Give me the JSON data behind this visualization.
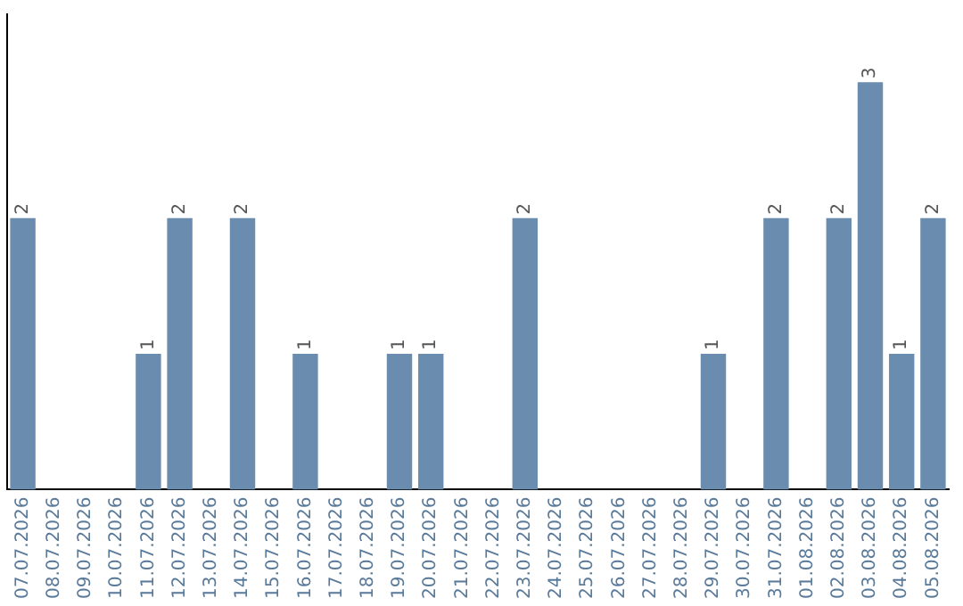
{
  "chart_data": {
    "type": "bar",
    "categories": [
      "07.07.2026",
      "08.07.2026",
      "09.07.2026",
      "10.07.2026",
      "11.07.2026",
      "12.07.2026",
      "13.07.2026",
      "14.07.2026",
      "15.07.2026",
      "16.07.2026",
      "17.07.2026",
      "18.07.2026",
      "19.07.2026",
      "20.07.2026",
      "21.07.2026",
      "22.07.2026",
      "23.07.2026",
      "24.07.2026",
      "25.07.2026",
      "26.07.2026",
      "27.07.2026",
      "28.07.2026",
      "29.07.2026",
      "30.07.2026",
      "31.07.2026",
      "01.08.2026",
      "02.08.2026",
      "03.08.2026",
      "04.08.2026",
      "05.08.2026"
    ],
    "values": [
      2,
      0,
      0,
      0,
      1,
      2,
      0,
      2,
      0,
      1,
      0,
      0,
      1,
      1,
      0,
      0,
      2,
      0,
      0,
      0,
      0,
      0,
      1,
      0,
      2,
      0,
      2,
      3,
      1,
      2
    ],
    "value_labels": [
      "2",
      null,
      null,
      null,
      "1",
      "2",
      null,
      "2",
      null,
      "1",
      null,
      null,
      "1",
      "1",
      null,
      null,
      "2",
      null,
      null,
      null,
      null,
      null,
      "1",
      null,
      "2",
      null,
      "2",
      "3",
      "1",
      "2"
    ],
    "color": "#6a8caf",
    "tick_labels": "x",
    "grid": false,
    "legend": false
  }
}
